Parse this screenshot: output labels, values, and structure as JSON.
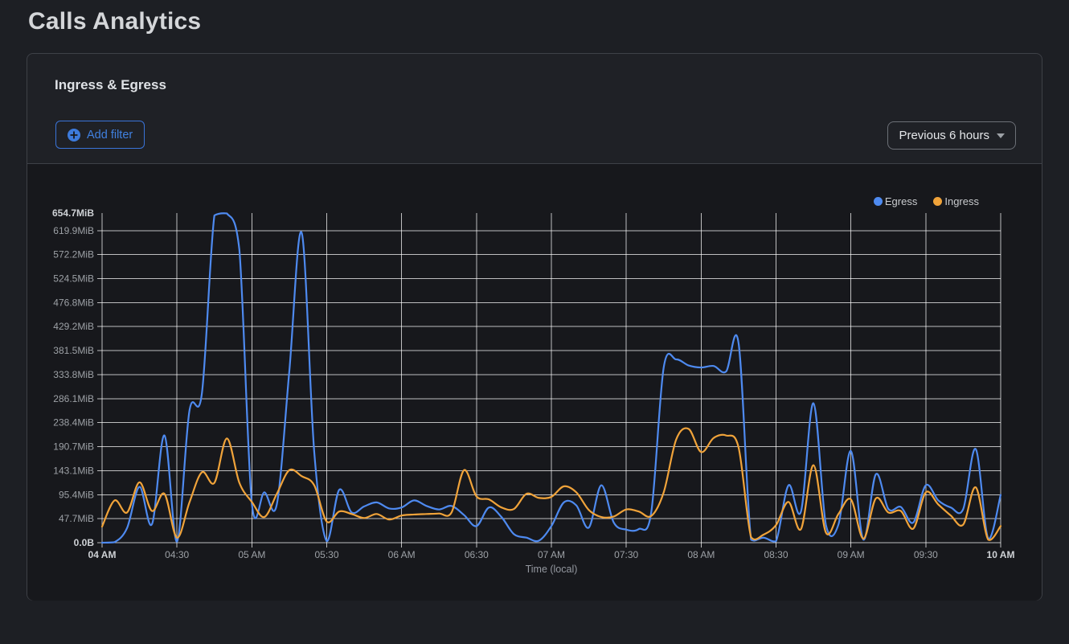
{
  "page": {
    "title": "Calls Analytics"
  },
  "panel": {
    "title": "Ingress & Egress",
    "filter_button": {
      "label": "Add filter"
    },
    "time_range_select": {
      "value": "Previous 6 hours"
    }
  },
  "colors": {
    "egress_blue": "#4e8af0",
    "ingress_orange": "#f0a33a",
    "filter_blue": "#3d7bdc",
    "panel_border": "#3e4147",
    "chart_background": "#17181c"
  },
  "chart_data": {
    "type": "line",
    "title": "Ingress & Egress",
    "xlabel": "Time (local)",
    "ylabel": "",
    "y_unit": "MiB",
    "y_max_mib": 654.7,
    "ylim": [
      0,
      654.7
    ],
    "grid": true,
    "legend_position": "top-right",
    "y_ticks_mib": [
      0,
      47.7,
      95.4,
      143.1,
      190.7,
      238.4,
      286.1,
      333.8,
      381.5,
      429.2,
      476.8,
      524.5,
      572.2,
      619.9,
      654.7
    ],
    "y_tick_labels": [
      "0.0B",
      "47.7MiB",
      "95.4MiB",
      "143.1MiB",
      "190.7MiB",
      "238.4MiB",
      "286.1MiB",
      "333.8MiB",
      "381.5MiB",
      "429.2MiB",
      "476.8MiB",
      "524.5MiB",
      "572.2MiB",
      "619.9MiB",
      "654.7MiB"
    ],
    "x_tick_labels": [
      "04 AM",
      "04:30",
      "05 AM",
      "05:30",
      "06 AM",
      "06:30",
      "07 AM",
      "07:30",
      "08 AM",
      "08:30",
      "09 AM",
      "09:30",
      "10 AM"
    ],
    "times": [
      "04:00",
      "04:05",
      "04:10",
      "04:15",
      "04:20",
      "04:25",
      "04:30",
      "04:35",
      "04:40",
      "04:45",
      "04:50",
      "04:55",
      "05:00",
      "05:05",
      "05:10",
      "05:15",
      "05:20",
      "05:25",
      "05:30",
      "05:35",
      "05:40",
      "05:45",
      "05:50",
      "05:55",
      "06:00",
      "06:05",
      "06:10",
      "06:15",
      "06:20",
      "06:25",
      "06:30",
      "06:35",
      "06:40",
      "06:45",
      "06:50",
      "06:55",
      "07:00",
      "07:05",
      "07:10",
      "07:15",
      "07:20",
      "07:25",
      "07:30",
      "07:35",
      "07:40",
      "07:45",
      "07:50",
      "07:55",
      "08:00",
      "08:05",
      "08:10",
      "08:15",
      "08:20",
      "08:25",
      "08:30",
      "08:35",
      "08:40",
      "08:45",
      "08:50",
      "08:55",
      "09:00",
      "09:05",
      "09:10",
      "09:15",
      "09:20",
      "09:25",
      "09:30",
      "09:35",
      "09:40",
      "09:45",
      "09:50",
      "09:55",
      "10:00"
    ],
    "series": [
      {
        "name": "Egress",
        "color": "#4e8af0",
        "values_mib": [
          0,
          1,
          29,
          111,
          37,
          213,
          2,
          262,
          297,
          650,
          654,
          582,
          78,
          100,
          76,
          340,
          615,
          180,
          3,
          105,
          60,
          72,
          80,
          68,
          70,
          84,
          73,
          66,
          73,
          55,
          33,
          70,
          51,
          17,
          10,
          4,
          33,
          80,
          74,
          30,
          114,
          40,
          26,
          27,
          60,
          348,
          364,
          352,
          348,
          351,
          340,
          396,
          6,
          10,
          3,
          114,
          62,
          277,
          35,
          36,
          182,
          6,
          136,
          67,
          71,
          40,
          114,
          84,
          70,
          67,
          186,
          8,
          95
        ]
      },
      {
        "name": "Ingress",
        "color": "#f0a33a",
        "values_mib": [
          32,
          84,
          60,
          120,
          63,
          97,
          10,
          80,
          140,
          119,
          207,
          119,
          81,
          51,
          97,
          144,
          132,
          114,
          42,
          62,
          57,
          49,
          57,
          46,
          54,
          56,
          57,
          58,
          60,
          144,
          92,
          86,
          70,
          67,
          97,
          89,
          91,
          112,
          100,
          65,
          51,
          52,
          66,
          62,
          53,
          100,
          205,
          226,
          180,
          208,
          213,
          189,
          11,
          16,
          35,
          81,
          27,
          154,
          20,
          57,
          86,
          8,
          88,
          60,
          63,
          28,
          100,
          76,
          54,
          36,
          110,
          6,
          33
        ]
      }
    ]
  }
}
